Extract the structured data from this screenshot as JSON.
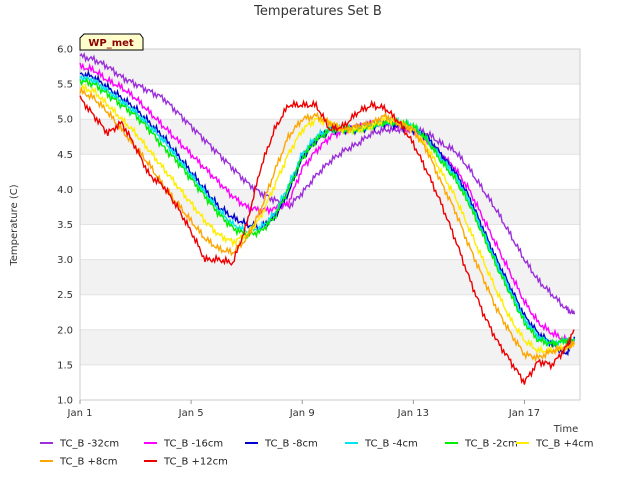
{
  "chart_data": {
    "type": "line",
    "title": "Temperatures Set B",
    "xlabel": "Time",
    "ylabel": "Temperature (C)",
    "badge": "WP_met",
    "xlim": [
      0,
      18
    ],
    "ylim": [
      1.0,
      6.0
    ],
    "x_ticks": [
      {
        "value": 0,
        "label": "Jan 1"
      },
      {
        "value": 4,
        "label": "Jan 5"
      },
      {
        "value": 8,
        "label": "Jan 9"
      },
      {
        "value": 12,
        "label": "Jan 13"
      },
      {
        "value": 16,
        "label": "Jan 17"
      }
    ],
    "y_ticks": [
      1.0,
      1.5,
      2.0,
      2.5,
      3.0,
      3.5,
      4.0,
      4.5,
      5.0,
      5.5,
      6.0
    ],
    "grid": "horizontal-bands",
    "legend_position": "bottom",
    "x": [
      0,
      0.5,
      1,
      1.5,
      2,
      2.5,
      3,
      3.5,
      4,
      4.5,
      5,
      5.5,
      6,
      6.5,
      7,
      7.5,
      8,
      8.5,
      9,
      9.5,
      10,
      10.5,
      11,
      11.5,
      12,
      12.5,
      13,
      13.5,
      14,
      14.5,
      15,
      15.5,
      16,
      16.5,
      17,
      17.5,
      17.8
    ],
    "series": [
      {
        "name": "TC_B -32cm",
        "color": "#9b30d9",
        "values": [
          5.9,
          5.85,
          5.75,
          5.6,
          5.5,
          5.4,
          5.3,
          5.1,
          4.9,
          4.7,
          4.5,
          4.3,
          4.1,
          3.95,
          3.85,
          3.75,
          3.95,
          4.2,
          4.4,
          4.55,
          4.65,
          4.8,
          4.85,
          4.85,
          4.85,
          4.8,
          4.65,
          4.55,
          4.3,
          4.0,
          3.7,
          3.35,
          3.0,
          2.7,
          2.5,
          2.3,
          2.22
        ]
      },
      {
        "name": "TC_B -16cm",
        "color": "#ff00ff",
        "values": [
          5.75,
          5.7,
          5.55,
          5.45,
          5.3,
          5.1,
          4.9,
          4.7,
          4.5,
          4.3,
          4.1,
          3.9,
          3.75,
          3.7,
          3.72,
          3.8,
          4.3,
          4.55,
          4.75,
          4.85,
          4.9,
          4.95,
          4.95,
          4.9,
          4.85,
          4.7,
          4.5,
          4.3,
          4.0,
          3.6,
          3.2,
          2.8,
          2.4,
          2.1,
          1.95,
          1.85,
          1.8
        ]
      },
      {
        "name": "TC_B -8cm",
        "color": "#0000cc",
        "values": [
          5.65,
          5.6,
          5.45,
          5.3,
          5.15,
          4.95,
          4.75,
          4.5,
          4.25,
          4.0,
          3.75,
          3.6,
          3.5,
          3.45,
          3.6,
          3.95,
          4.45,
          4.7,
          4.85,
          4.85,
          4.85,
          4.9,
          4.95,
          4.9,
          4.85,
          4.75,
          4.5,
          4.25,
          3.9,
          3.45,
          3.0,
          2.6,
          2.2,
          1.95,
          1.8,
          1.65,
          1.9
        ]
      },
      {
        "name": "TC_B -4cm",
        "color": "#00e5ee",
        "values": [
          5.6,
          5.55,
          5.4,
          5.25,
          5.1,
          4.9,
          4.7,
          4.45,
          4.2,
          3.95,
          3.7,
          3.5,
          3.4,
          3.45,
          3.65,
          4.05,
          4.5,
          4.75,
          4.85,
          4.85,
          4.85,
          4.9,
          4.95,
          4.95,
          4.9,
          4.7,
          4.45,
          4.2,
          3.85,
          3.4,
          2.95,
          2.55,
          2.15,
          1.9,
          1.8,
          1.85,
          1.85
        ]
      },
      {
        "name": "TC_B -2cm",
        "color": "#00ee00",
        "values": [
          5.55,
          5.5,
          5.35,
          5.2,
          5.05,
          4.85,
          4.6,
          4.4,
          4.15,
          3.9,
          3.65,
          3.45,
          3.35,
          3.4,
          3.6,
          4.0,
          4.45,
          4.7,
          4.85,
          4.85,
          4.85,
          4.9,
          4.95,
          4.95,
          4.9,
          4.7,
          4.4,
          4.15,
          3.8,
          3.35,
          2.9,
          2.5,
          2.1,
          1.85,
          1.8,
          1.85,
          1.85
        ]
      },
      {
        "name": "TC_B +4cm",
        "color": "#ffee00",
        "values": [
          5.45,
          5.4,
          5.2,
          5.0,
          4.8,
          4.55,
          4.3,
          4.05,
          3.8,
          3.55,
          3.35,
          3.25,
          3.35,
          3.6,
          4.05,
          4.5,
          4.85,
          5.0,
          4.95,
          4.85,
          4.85,
          4.9,
          5.0,
          4.95,
          4.85,
          4.6,
          4.25,
          3.9,
          3.45,
          3.0,
          2.55,
          2.15,
          1.85,
          1.7,
          1.7,
          1.75,
          1.8
        ]
      },
      {
        "name": "TC_B +8cm",
        "color": "#ffa500",
        "values": [
          5.4,
          5.3,
          5.1,
          4.85,
          4.6,
          4.35,
          4.05,
          3.8,
          3.55,
          3.3,
          3.15,
          3.1,
          3.3,
          3.7,
          4.25,
          4.75,
          5.0,
          5.05,
          4.95,
          4.85,
          4.9,
          4.95,
          5.05,
          4.95,
          4.85,
          4.55,
          4.1,
          3.7,
          3.2,
          2.75,
          2.3,
          1.95,
          1.65,
          1.6,
          1.7,
          1.75,
          1.8
        ]
      },
      {
        "name": "TC_B +12cm",
        "color": "#ee0000",
        "values": [
          5.3,
          5.05,
          4.8,
          4.95,
          4.6,
          4.2,
          4.05,
          3.75,
          3.4,
          3.0,
          3.0,
          2.95,
          3.5,
          4.3,
          4.85,
          5.2,
          5.2,
          5.2,
          4.85,
          4.9,
          5.1,
          5.2,
          5.15,
          4.95,
          4.65,
          4.25,
          3.8,
          3.3,
          2.75,
          2.25,
          1.85,
          1.55,
          1.25,
          1.55,
          1.5,
          1.75,
          2.0
        ]
      }
    ]
  }
}
